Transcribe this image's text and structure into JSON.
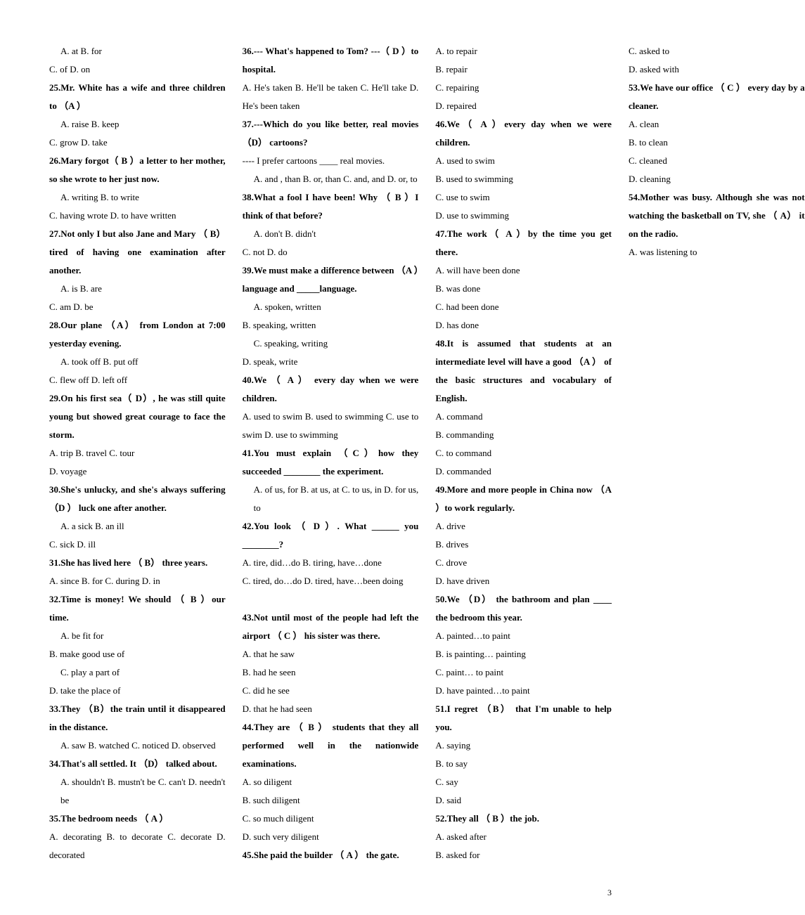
{
  "page_number": "3",
  "lines": [
    {
      "t": "A. at                                                B. for",
      "b": false,
      "i": true
    },
    {
      "t": "C. of                           D. on",
      "b": false,
      "i": false
    },
    {
      "t": "25.Mr. White has a wife and three children to （A ）",
      "b": true,
      "i": false
    },
    {
      "t": "A. raise                                           B. keep",
      "b": false,
      "i": true
    },
    {
      "t": "C. grow                        D. take",
      "b": false,
      "i": false
    },
    {
      "t": "26.Mary forgot（ B ）a letter to her mother, so she wrote to her just now.",
      "b": true,
      "i": false
    },
    {
      "t": "A. writing                                       B. to write",
      "b": false,
      "i": true
    },
    {
      "t": "C. having wrote      D. to have written",
      "b": false,
      "i": false
    },
    {
      "t": "27.Not only I but also Jane and Mary （ B）tired of having one examination after another.",
      "b": true,
      "i": false
    },
    {
      "t": "A. is                                                 B. are",
      "b": false,
      "i": true
    },
    {
      "t": "C. am                          D. be",
      "b": false,
      "i": false
    },
    {
      "t": "28.Our plane （A） from London at 7:00 yesterday evening.",
      "b": true,
      "i": false
    },
    {
      "t": "A. took off                                      B. put off",
      "b": false,
      "i": true
    },
    {
      "t": "C. flew off                   D. left off",
      "b": false,
      "i": false
    },
    {
      "t": "29.On his first sea（ D）, he was still quite young but showed great courage to face the storm.",
      "b": true,
      "i": false
    },
    {
      "t": "A. trip                          B. travel               C. tour",
      "b": false,
      "i": false
    },
    {
      "t": "D. voyage",
      "b": false,
      "i": false
    },
    {
      "t": "30.She's unlucky, and she's always suffering （D ） luck one after another.",
      "b": true,
      "i": false
    },
    {
      "t": "A. a sick                                           B. an ill",
      "b": false,
      "i": true
    },
    {
      "t": "C. sick                         D. ill",
      "b": false,
      "i": false
    },
    {
      "t": "31.She has lived here （ B） three years.",
      "b": true,
      "i": false
    },
    {
      "t": "A.    since                    B. for                    C. during                  D. in",
      "b": false,
      "i": false
    },
    {
      "t": "32.Time is money! We should （ B ）our time.",
      "b": true,
      "i": false
    },
    {
      "t": "A.        be        fit        for",
      "b": false,
      "i": true
    },
    {
      "t": "B. make good use of",
      "b": false,
      "i": false
    },
    {
      "t": "C.       play      a      part      of",
      "b": false,
      "i": true
    },
    {
      "t": "D. take the place of",
      "b": false,
      "i": false
    },
    {
      "t": "33.They （B）the train until it disappeared in the distance.",
      "b": true,
      "i": false
    },
    {
      "t": "A. saw                    B. watched            C. noticed           D. observed",
      "b": false,
      "i": true
    },
    {
      "t": "34.That's all settled. It （D） talked about.",
      "b": true,
      "i": false
    },
    {
      "t": "A. shouldn't           B. mustn't be          C. can't           D. needn't be",
      "b": false,
      "i": true
    },
    {
      "t": "35.The bedroom needs （ A ）",
      "b": true,
      "i": false
    },
    {
      "t": "A. decorating              B. to decorate            C. decorate         D. decorated",
      "b": false,
      "i": false
    },
    {
      "t": "36.--- What's happened to Tom?   ---（ D ）to hospital.",
      "b": true,
      "i": false
    },
    {
      "t": "A.      He's taken       B. He'll be taken        C. He'll take          D. He's been taken",
      "b": false,
      "i": false
    },
    {
      "t": "37.---Which do you like better, real movies （D） cartoons?",
      "b": true,
      "i": false
    },
    {
      "t": "---- I prefer cartoons   ____ real movies.",
      "b": false,
      "i": false
    },
    {
      "t": "A. and , than            B. or, than                C. and, and          D. or, to",
      "b": false,
      "i": true
    },
    {
      "t": "38.What a fool I have been! Why （ B ）I think of that before?",
      "b": true,
      "i": false
    },
    {
      "t": "A. don't                                             B. didn't",
      "b": false,
      "i": true
    },
    {
      "t": "C. not                           D. do",
      "b": false,
      "i": false
    },
    {
      "t": "39.We must make a difference between （A ）language and _____language.",
      "b": true,
      "i": false
    },
    {
      "t": "A.            spoken,            written",
      "b": false,
      "i": true
    },
    {
      "t": "B. speaking, written",
      "b": false,
      "i": false
    },
    {
      "t": "C.            speaking,            writing",
      "b": false,
      "i": true
    },
    {
      "t": "D. speak, write",
      "b": false,
      "i": false
    },
    {
      "t": "40.We （ A ） every day when we were children.",
      "b": true,
      "i": false
    },
    {
      "t": "A. used to swim   B. used to swimming       C. use to swim     D. use to swimming",
      "b": false,
      "i": false
    },
    {
      "t": "41.You must explain （C）how they succeeded ________ the experiment.",
      "b": true,
      "i": false
    },
    {
      "t": "A. of us, for             B. at us, at               C. to us, in           D. for us, to",
      "b": false,
      "i": true
    },
    {
      "t": "42.You look （ D ）. What ______ you ________?",
      "b": true,
      "i": false
    },
    {
      "t": "A. tire, did…do                                            B. tiring, have…done",
      "b": false,
      "i": false
    },
    {
      "t": "C. tired, do…do                                      D. tired, have…been doing",
      "b": false,
      "i": false
    },
    {
      "t": " ",
      "b": false,
      "i": false
    },
    {
      "t": "43.Not until most of the people had left the airport （ C ） his sister was there.",
      "b": true,
      "i": false
    },
    {
      "t": "A. that he saw",
      "b": false,
      "i": false
    },
    {
      "t": "B. had he seen",
      "b": false,
      "i": false
    },
    {
      "t": "C. did he see",
      "b": false,
      "i": false
    },
    {
      "t": "D. that he had seen",
      "b": false,
      "i": false
    },
    {
      "t": "44.They are （ B ） students that they all performed well in the nationwide examinations.",
      "b": true,
      "i": false
    },
    {
      "t": "A. so diligent",
      "b": false,
      "i": false
    },
    {
      "t": "B. such diligent",
      "b": false,
      "i": false
    },
    {
      "t": "C. so much diligent",
      "b": false,
      "i": false
    },
    {
      "t": "D. such very diligent",
      "b": false,
      "i": false
    },
    {
      "t": "45.She paid the builder （ A ） the gate.",
      "b": true,
      "i": false
    },
    {
      "t": "A. to repair",
      "b": false,
      "i": false
    },
    {
      "t": "B. repair",
      "b": false,
      "i": false
    },
    {
      "t": "C. repairing",
      "b": false,
      "i": false
    },
    {
      "t": "D. repaired",
      "b": false,
      "i": false
    },
    {
      "t": "46.We（ A ）every day when we were children.",
      "b": true,
      "i": false
    },
    {
      "t": "A. used to swim",
      "b": false,
      "i": false
    },
    {
      "t": "B. used to swimming",
      "b": false,
      "i": false
    },
    {
      "t": "C. use to swim",
      "b": false,
      "i": false
    },
    {
      "t": "D. use to swimming",
      "b": false,
      "i": false
    },
    {
      "t": "47.The work（ A ）by the time you get there.",
      "b": true,
      "i": false
    },
    {
      "t": "A. will have been done",
      "b": false,
      "i": false
    },
    {
      "t": "B. was done",
      "b": false,
      "i": false
    },
    {
      "t": "C. had been done",
      "b": false,
      "i": false
    },
    {
      "t": "D. has done",
      "b": false,
      "i": false
    },
    {
      "t": "48.It is assumed that students at an intermediate level will have a good （A ） of the basic structures and vocabulary of English.",
      "b": true,
      "i": false
    },
    {
      "t": "A. command",
      "b": false,
      "i": false
    },
    {
      "t": "B. commanding",
      "b": false,
      "i": false
    },
    {
      "t": "C. to command",
      "b": false,
      "i": false
    },
    {
      "t": "D. commanded",
      "b": false,
      "i": false
    },
    {
      "t": "49.More and more people in China now （A ）to work regularly.",
      "b": true,
      "i": false
    },
    {
      "t": "A. drive",
      "b": false,
      "i": false
    },
    {
      "t": "B. drives",
      "b": false,
      "i": false
    },
    {
      "t": "C. drove",
      "b": false,
      "i": false
    },
    {
      "t": "D. have driven",
      "b": false,
      "i": false
    },
    {
      "t": "50.We （D） the bathroom and plan ____ the bedroom this year.",
      "b": true,
      "i": false
    },
    {
      "t": "A. painted…to paint",
      "b": false,
      "i": false
    },
    {
      "t": "B. is painting… painting",
      "b": false,
      "i": false
    },
    {
      "t": "C. paint… to paint",
      "b": false,
      "i": false
    },
    {
      "t": "D. have painted…to paint",
      "b": false,
      "i": false
    },
    {
      "t": "51.I regret （B） that I'm unable to help you.",
      "b": true,
      "i": false
    },
    {
      "t": "A. saying",
      "b": false,
      "i": false
    },
    {
      "t": "B. to say",
      "b": false,
      "i": false
    },
    {
      "t": "C. say",
      "b": false,
      "i": false
    },
    {
      "t": "D. said",
      "b": false,
      "i": false
    },
    {
      "t": "52.They all （ B ）the job.",
      "b": true,
      "i": false
    },
    {
      "t": "A. asked after",
      "b": false,
      "i": false
    },
    {
      "t": "B. asked for",
      "b": false,
      "i": false
    },
    {
      "t": "C. asked to",
      "b": false,
      "i": false
    },
    {
      "t": "D. asked with",
      "b": false,
      "i": false
    },
    {
      "t": "53.We have our office （ C ） every day by a cleaner.",
      "b": true,
      "i": false
    },
    {
      "t": "A. clean",
      "b": false,
      "i": false
    },
    {
      "t": "B. to clean",
      "b": false,
      "i": false
    },
    {
      "t": "C. cleaned",
      "b": false,
      "i": false
    },
    {
      "t": "D. cleaning",
      "b": false,
      "i": false
    },
    {
      "t": "54.Mother was busy. Although she was not watching the basketball on TV, she （ A） it on the radio.",
      "b": true,
      "i": false
    },
    {
      "t": "A. was listening to",
      "b": false,
      "i": false
    }
  ]
}
